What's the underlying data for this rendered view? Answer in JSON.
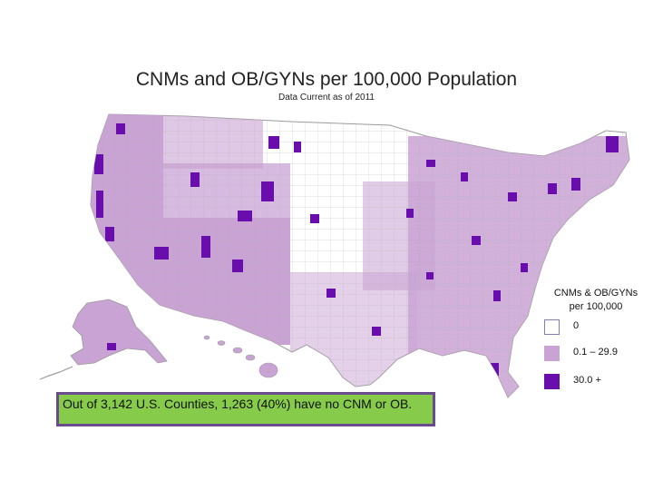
{
  "title": "CNMs and OB/GYNs per 100,000 Population",
  "subtitle": "Data Current as of 2011",
  "legend": {
    "title": "CNMs & OB/GYNs\nper 100,000",
    "items": [
      {
        "label": "0",
        "color": "#ffffff",
        "border": "#8a7ab0"
      },
      {
        "label": "0.1 – 29.9",
        "color": "#c9a3d4",
        "border": "#c9a3d4"
      },
      {
        "label": "30.0 +",
        "color": "#6a0dad",
        "border": "#6a0dad"
      }
    ]
  },
  "note": "Out of 3,142 U.S. Counties, 1,263 (40%) have no CNM or OB.",
  "colors": {
    "none": "#ffffff",
    "low": "#c9a3d4",
    "high": "#6a0dad",
    "border": "#9a9a9a"
  }
}
